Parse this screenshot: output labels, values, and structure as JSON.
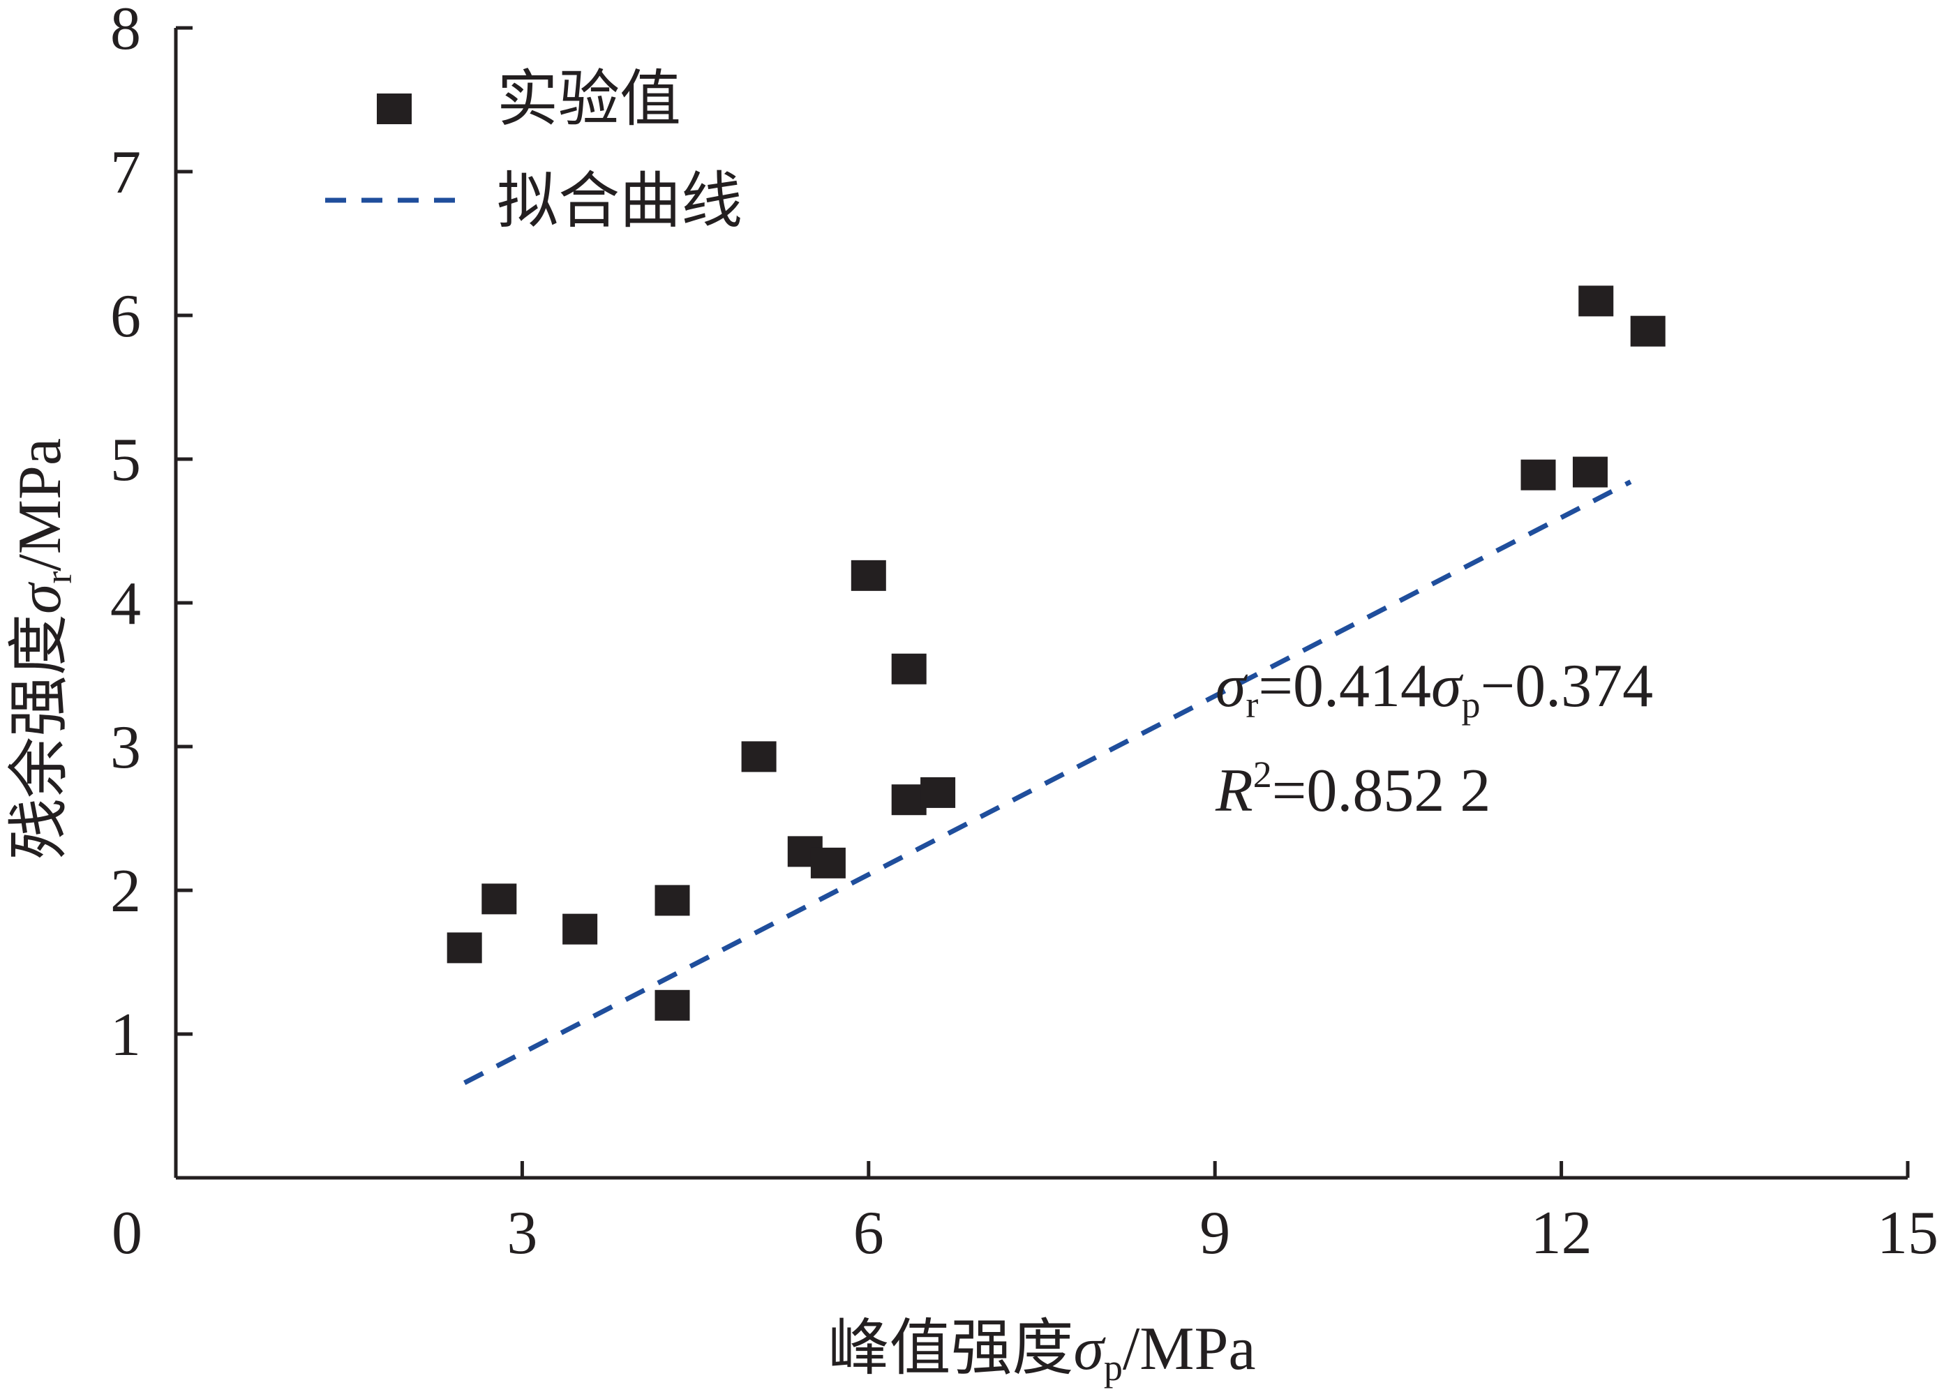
{
  "chart_data": {
    "type": "scatter",
    "xlabel_main": "峰值强度",
    "xlabel_symbol": "σ",
    "xlabel_sub": "p",
    "xlabel_unit": "/MPa",
    "ylabel_main": "残余强度",
    "ylabel_symbol": "σ",
    "ylabel_sub": "r",
    "ylabel_unit": "/MPa",
    "xlim": [
      0,
      15
    ],
    "ylim": [
      0,
      8
    ],
    "x_ticks": [
      0,
      3,
      6,
      9,
      12,
      15
    ],
    "y_ticks": [
      1,
      2,
      3,
      4,
      5,
      6,
      7,
      8
    ],
    "x_tick_labels": [
      "0",
      "3",
      "6",
      "9",
      "12",
      "15"
    ],
    "y_tick_labels": [
      "1",
      "2",
      "3",
      "4",
      "5",
      "6",
      "7",
      "8"
    ],
    "grid": false,
    "legend": {
      "placement": "top-left",
      "points_label": "实验值",
      "fit_label": "拟合曲线"
    },
    "series": [
      {
        "name": "实验值",
        "marker": "square",
        "color": "#231f20",
        "points": [
          [
            2.5,
            1.6
          ],
          [
            2.8,
            1.94
          ],
          [
            3.5,
            1.73
          ],
          [
            4.3,
            1.93
          ],
          [
            4.3,
            1.2
          ],
          [
            5.05,
            2.93
          ],
          [
            5.45,
            2.27
          ],
          [
            5.65,
            2.19
          ],
          [
            6.0,
            4.19
          ],
          [
            6.35,
            3.54
          ],
          [
            6.35,
            2.63
          ],
          [
            6.6,
            2.68
          ],
          [
            11.8,
            4.89
          ],
          [
            12.25,
            4.91
          ],
          [
            12.3,
            6.1
          ],
          [
            12.75,
            5.89
          ]
        ]
      },
      {
        "name": "拟合曲线",
        "type": "line",
        "style": "dashed",
        "color": "#1f4e9c",
        "slope": 0.414,
        "intercept": -0.374,
        "x_range": [
          2.5,
          12.6
        ]
      }
    ],
    "annotation": {
      "eq_symbol": "σ",
      "eq_sub1": "r",
      "eq_mid": "=0.414",
      "eq_symbol2": "σ",
      "eq_sub2": "p",
      "eq_end": "−0.374",
      "r2_symbol": "R",
      "r2_sup": "2",
      "r2_value": "=0.852 2"
    }
  }
}
